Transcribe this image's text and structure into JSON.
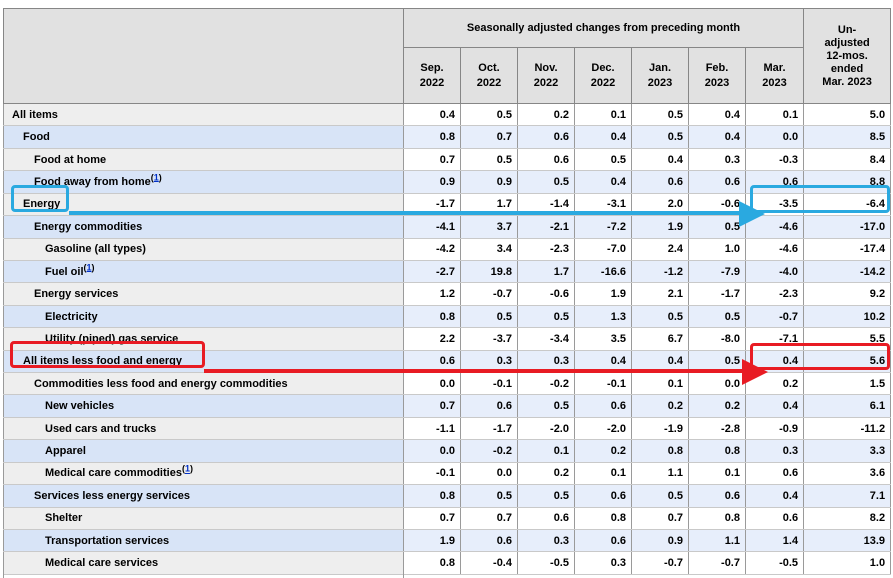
{
  "chart_data": {
    "type": "table",
    "title": "Seasonally adjusted changes from preceding month",
    "columns": [
      "Sep. 2022",
      "Oct. 2022",
      "Nov. 2022",
      "Dec. 2022",
      "Jan. 2023",
      "Feb. 2023",
      "Mar. 2023",
      "Un-adjusted 12-mos. ended Mar. 2023"
    ],
    "footnote_symbol": "1",
    "rows": [
      {
        "label": "All items",
        "level": 0,
        "footnote": false,
        "values": [
          "0.4",
          "0.5",
          "0.2",
          "0.1",
          "0.5",
          "0.4",
          "0.1",
          "5.0"
        ]
      },
      {
        "label": "Food",
        "level": 1,
        "footnote": false,
        "values": [
          "0.8",
          "0.7",
          "0.6",
          "0.4",
          "0.5",
          "0.4",
          "0.0",
          "8.5"
        ]
      },
      {
        "label": "Food at home",
        "level": 2,
        "footnote": false,
        "values": [
          "0.7",
          "0.5",
          "0.6",
          "0.5",
          "0.4",
          "0.3",
          "-0.3",
          "8.4"
        ]
      },
      {
        "label": "Food away from home",
        "level": 2,
        "footnote": true,
        "values": [
          "0.9",
          "0.9",
          "0.5",
          "0.4",
          "0.6",
          "0.6",
          "0.6",
          "8.8"
        ]
      },
      {
        "label": "Energy",
        "level": 1,
        "footnote": false,
        "values": [
          "-1.7",
          "1.7",
          "-1.4",
          "-3.1",
          "2.0",
          "-0.6",
          "-3.5",
          "-6.4"
        ]
      },
      {
        "label": "Energy commodities",
        "level": 2,
        "footnote": false,
        "values": [
          "-4.1",
          "3.7",
          "-2.1",
          "-7.2",
          "1.9",
          "0.5",
          "-4.6",
          "-17.0"
        ]
      },
      {
        "label": "Gasoline (all types)",
        "level": 3,
        "footnote": false,
        "values": [
          "-4.2",
          "3.4",
          "-2.3",
          "-7.0",
          "2.4",
          "1.0",
          "-4.6",
          "-17.4"
        ]
      },
      {
        "label": "Fuel oil",
        "level": 3,
        "footnote": true,
        "values": [
          "-2.7",
          "19.8",
          "1.7",
          "-16.6",
          "-1.2",
          "-7.9",
          "-4.0",
          "-14.2"
        ]
      },
      {
        "label": "Energy services",
        "level": 2,
        "footnote": false,
        "values": [
          "1.2",
          "-0.7",
          "-0.6",
          "1.9",
          "2.1",
          "-1.7",
          "-2.3",
          "9.2"
        ]
      },
      {
        "label": "Electricity",
        "level": 3,
        "footnote": false,
        "values": [
          "0.8",
          "0.5",
          "0.5",
          "1.3",
          "0.5",
          "0.5",
          "-0.7",
          "10.2"
        ]
      },
      {
        "label": "Utility (piped) gas service",
        "level": 3,
        "footnote": false,
        "values": [
          "2.2",
          "-3.7",
          "-3.4",
          "3.5",
          "6.7",
          "-8.0",
          "-7.1",
          "5.5"
        ]
      },
      {
        "label": "All items less food and energy",
        "level": 1,
        "footnote": false,
        "values": [
          "0.6",
          "0.3",
          "0.3",
          "0.4",
          "0.4",
          "0.5",
          "0.4",
          "5.6"
        ]
      },
      {
        "label": "Commodities less food and energy commodities",
        "level": 2,
        "footnote": false,
        "values": [
          "0.0",
          "-0.1",
          "-0.2",
          "-0.1",
          "0.1",
          "0.0",
          "0.2",
          "1.5"
        ]
      },
      {
        "label": "New vehicles",
        "level": 3,
        "footnote": false,
        "values": [
          "0.7",
          "0.6",
          "0.5",
          "0.6",
          "0.2",
          "0.2",
          "0.4",
          "6.1"
        ]
      },
      {
        "label": "Used cars and trucks",
        "level": 3,
        "footnote": false,
        "values": [
          "-1.1",
          "-1.7",
          "-2.0",
          "-2.0",
          "-1.9",
          "-2.8",
          "-0.9",
          "-11.2"
        ]
      },
      {
        "label": "Apparel",
        "level": 3,
        "footnote": false,
        "values": [
          "0.0",
          "-0.2",
          "0.1",
          "0.2",
          "0.8",
          "0.8",
          "0.3",
          "3.3"
        ]
      },
      {
        "label": "Medical care commodities",
        "level": 3,
        "footnote": true,
        "values": [
          "-0.1",
          "0.0",
          "0.2",
          "0.1",
          "1.1",
          "0.1",
          "0.6",
          "3.6"
        ]
      },
      {
        "label": "Services less energy services",
        "level": 2,
        "footnote": false,
        "values": [
          "0.8",
          "0.5",
          "0.5",
          "0.6",
          "0.5",
          "0.6",
          "0.4",
          "7.1"
        ]
      },
      {
        "label": "Shelter",
        "level": 3,
        "footnote": false,
        "values": [
          "0.7",
          "0.7",
          "0.6",
          "0.8",
          "0.7",
          "0.8",
          "0.6",
          "8.2"
        ]
      },
      {
        "label": "Transportation services",
        "level": 3,
        "footnote": false,
        "values": [
          "1.9",
          "0.6",
          "0.3",
          "0.6",
          "0.9",
          "1.1",
          "1.4",
          "13.9"
        ]
      },
      {
        "label": "Medical care services",
        "level": 3,
        "footnote": false,
        "values": [
          "0.8",
          "-0.4",
          "-0.5",
          "0.3",
          "-0.7",
          "-0.7",
          "-0.5",
          "1.0"
        ]
      }
    ]
  },
  "header": {
    "group_title": "Seasonally adjusted changes from preceding month",
    "months_display": [
      "Sep.\n2022",
      "Oct.\n2022",
      "Nov.\n2022",
      "Dec.\n2022",
      "Jan.\n2023",
      "Feb.\n2023",
      "Mar.\n2023"
    ],
    "unadjusted_display": "Un-\nadjusted\n12-mos.\nended\nMar. 2023"
  },
  "annotations": {
    "blue": {
      "color": "#2aa9e0",
      "highlighted_row": "Energy",
      "highlighted_values": [
        "-3.5",
        "-6.4"
      ]
    },
    "red": {
      "color": "#e81b23",
      "highlighted_row": "All items less food and energy",
      "highlighted_values": [
        "0.4",
        "5.6"
      ]
    }
  }
}
